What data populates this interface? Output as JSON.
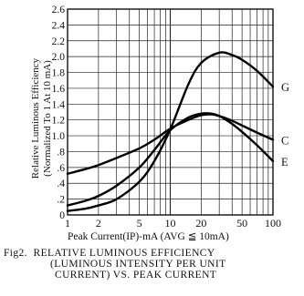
{
  "chart_data": {
    "type": "line",
    "xlabel": "Peak Current(IP)-mA (AVG ≦ 10mA)",
    "ylabel_line1": "Relative Luminous Efficiency",
    "ylabel_line2": "(Normalized To 1 At 10 mA)",
    "x_scale": "log",
    "xlim": [
      1,
      100
    ],
    "ylim": [
      0,
      2.6
    ],
    "x_ticks": [
      1,
      2,
      5,
      10,
      20,
      50,
      100
    ],
    "x_tick_labels": [
      "1",
      "2",
      "5",
      "10",
      "20",
      "50",
      "100"
    ],
    "y_ticks": [
      0,
      0.2,
      0.4,
      0.6,
      0.8,
      1.0,
      1.2,
      1.4,
      1.6,
      1.8,
      2.0,
      2.2,
      2.4,
      2.6
    ],
    "y_tick_labels": [
      "0",
      ".2",
      ".4",
      ".6",
      ".8",
      "1.0",
      "1.2",
      "1.4",
      "1.6",
      "1.8",
      "2.0",
      "2.2",
      "2.4",
      "2.6"
    ],
    "grid": true,
    "series": [
      {
        "name": "G",
        "x": [
          1,
          1.5,
          2,
          3,
          5,
          7,
          10,
          15,
          20,
          30,
          40,
          50,
          70,
          100
        ],
        "y": [
          0.05,
          0.08,
          0.12,
          0.2,
          0.42,
          0.68,
          1.08,
          1.65,
          1.92,
          2.05,
          2.02,
          1.96,
          1.82,
          1.62
        ]
      },
      {
        "name": "C",
        "x": [
          1,
          1.5,
          2,
          3,
          5,
          7,
          10,
          15,
          20,
          25,
          30,
          40,
          50,
          70,
          100
        ],
        "y": [
          0.52,
          0.58,
          0.63,
          0.72,
          0.84,
          0.95,
          1.09,
          1.2,
          1.26,
          1.27,
          1.25,
          1.19,
          1.13,
          1.04,
          0.95
        ]
      },
      {
        "name": "E",
        "x": [
          1,
          1.5,
          2,
          3,
          5,
          7,
          10,
          15,
          20,
          25,
          30,
          40,
          50,
          70,
          100
        ],
        "y": [
          0.12,
          0.18,
          0.24,
          0.37,
          0.6,
          0.82,
          1.07,
          1.23,
          1.28,
          1.28,
          1.25,
          1.15,
          1.05,
          0.88,
          0.68
        ]
      }
    ]
  },
  "caption": {
    "line1": "Fig2.  RELATIVE LUMINOUS EFFICIENCY",
    "line2": "(LUMINOUS INTENSITY PER UNIT",
    "line3": "CURRENT) VS. PEAK CURRENT"
  }
}
